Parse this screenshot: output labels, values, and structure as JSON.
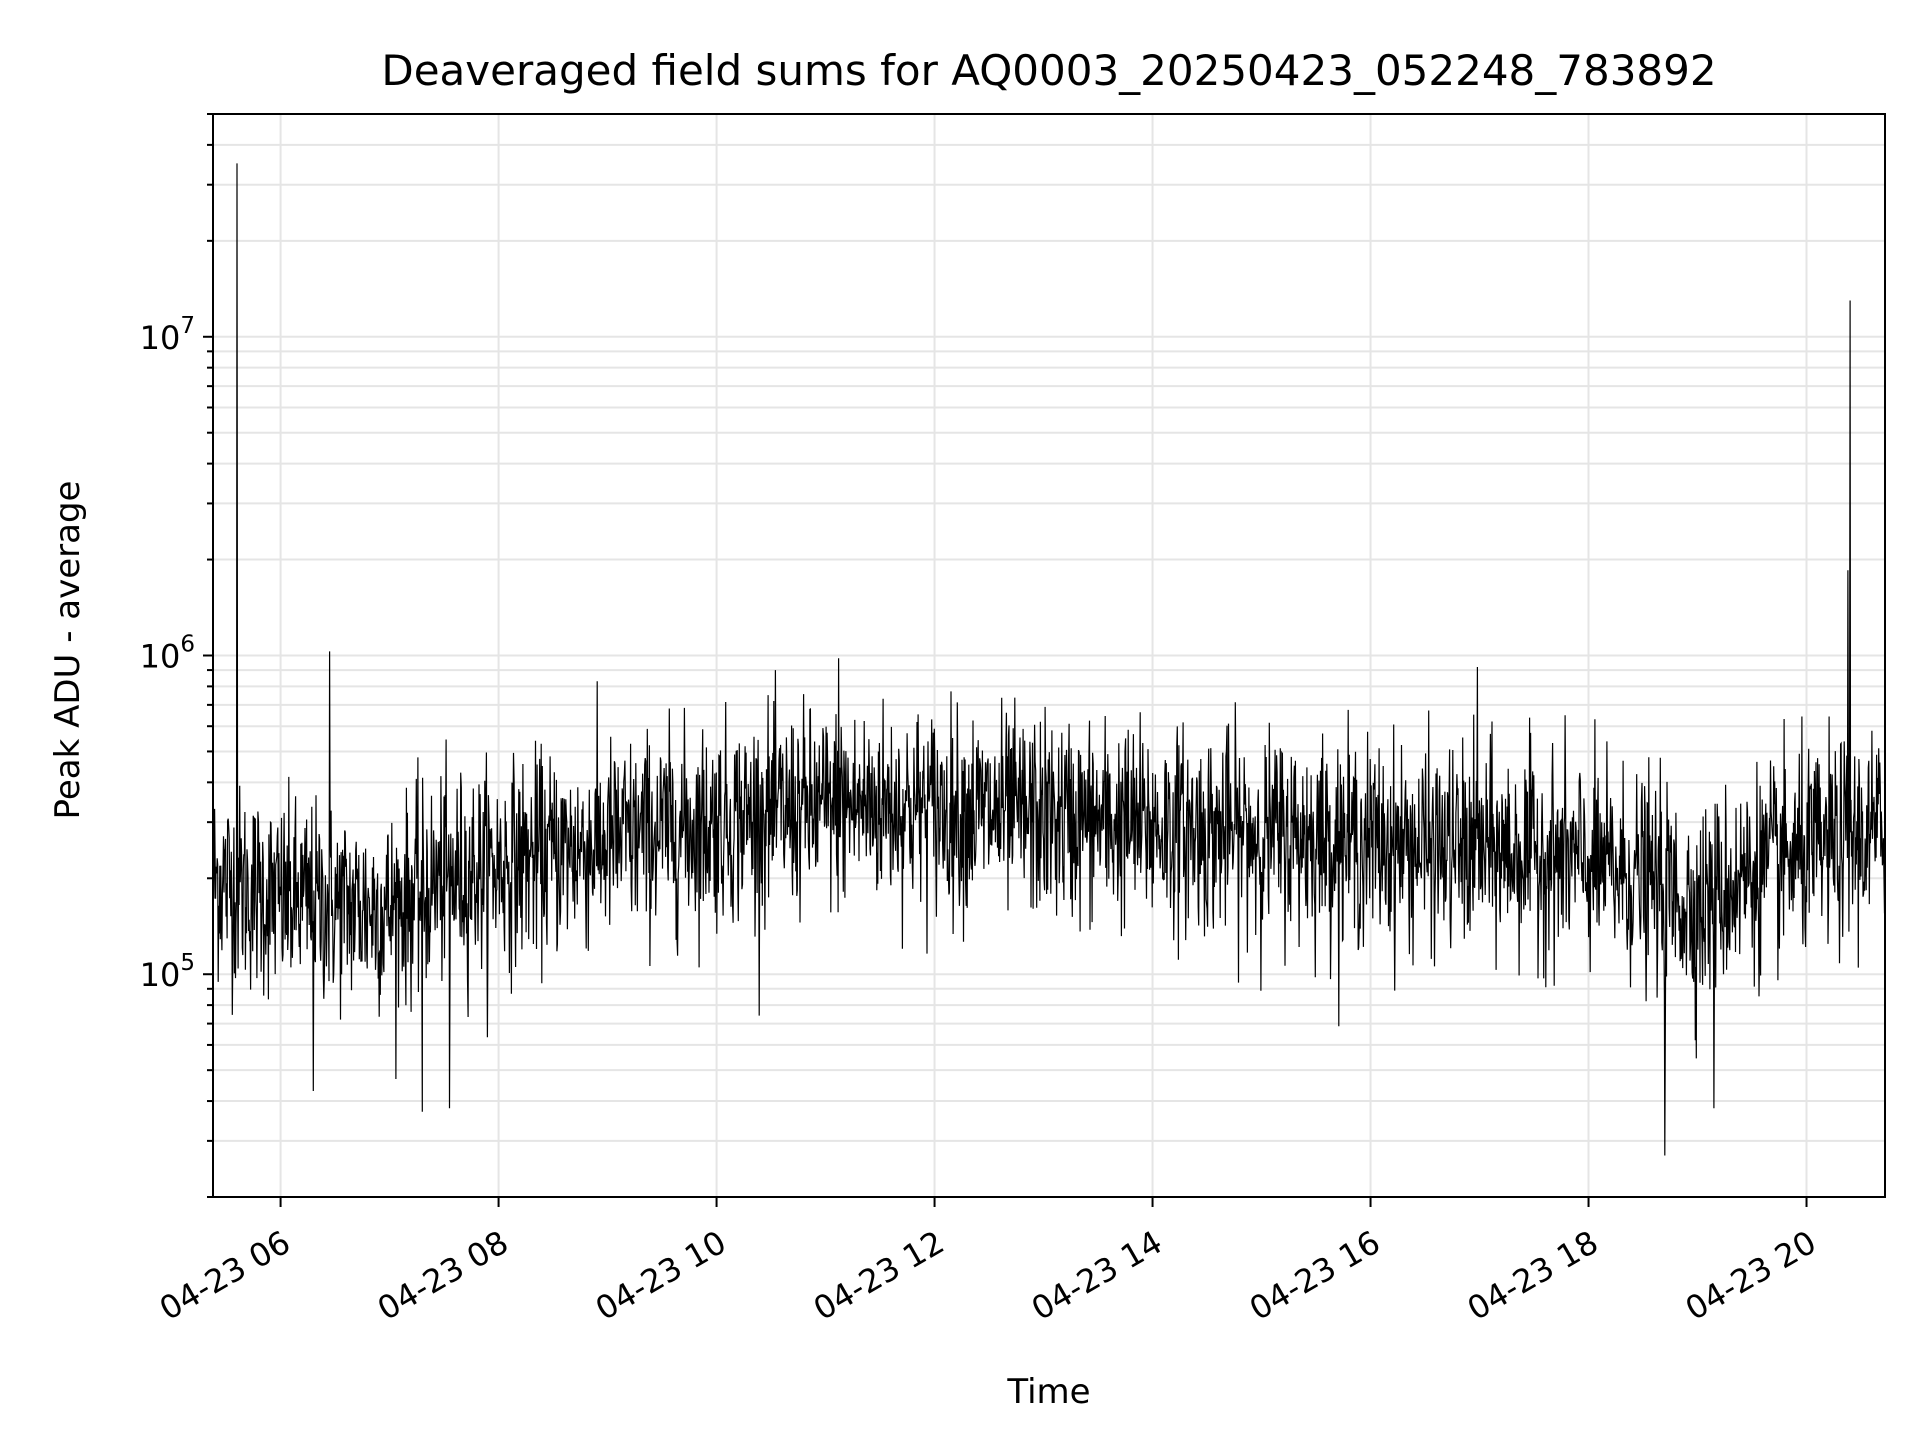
{
  "chart_data": {
    "type": "line",
    "title": "Deaveraged field sums for AQ0003_20250423_052248_783892",
    "xlabel": "Time",
    "ylabel": "Peak ADU - average",
    "x_tick_labels": [
      "04-23 06",
      "04-23 08",
      "04-23 10",
      "04-23 12",
      "04-23 14",
      "04-23 16",
      "04-23 18",
      "04-23 20"
    ],
    "x_ticks_hours": [
      6,
      8,
      10,
      12,
      14,
      16,
      18,
      20
    ],
    "xlim_hours": [
      5.38,
      20.72
    ],
    "y_scale": "log",
    "ylim": [
      20000,
      50000000
    ],
    "y_tick_labels": [
      {
        "value": 100000,
        "base": "10",
        "exp": "5"
      },
      {
        "value": 1000000,
        "base": "10",
        "exp": "6"
      },
      {
        "value": 10000000,
        "base": "10",
        "exp": "7"
      }
    ],
    "grid": true,
    "line_color": "#000000",
    "grid_color": "#e5e5e5",
    "series": [
      {
        "baseline_profile": [
          {
            "hour": 5.4,
            "value": 200000
          },
          {
            "hour": 6.0,
            "value": 170000
          },
          {
            "hour": 7.0,
            "value": 160000
          },
          {
            "hour": 7.5,
            "value": 200000
          },
          {
            "hour": 8.5,
            "value": 240000
          },
          {
            "hour": 9.5,
            "value": 280000
          },
          {
            "hour": 10.5,
            "value": 320000
          },
          {
            "hour": 11.5,
            "value": 340000
          },
          {
            "hour": 12.5,
            "value": 320000
          },
          {
            "hour": 13.5,
            "value": 300000
          },
          {
            "hour": 14.5,
            "value": 280000
          },
          {
            "hour": 15.5,
            "value": 270000
          },
          {
            "hour": 16.5,
            "value": 250000
          },
          {
            "hour": 17.5,
            "value": 240000
          },
          {
            "hour": 18.5,
            "value": 200000
          },
          {
            "hour": 19.0,
            "value": 160000
          },
          {
            "hour": 19.5,
            "value": 210000
          },
          {
            "hour": 20.2,
            "value": 250000
          },
          {
            "hour": 20.7,
            "value": 280000
          }
        ],
        "spikes": [
          {
            "hour": 5.6,
            "value": 35000000
          },
          {
            "hour": 6.45,
            "value": 1030000
          },
          {
            "hour": 11.12,
            "value": 980000
          },
          {
            "hour": 16.98,
            "value": 920000
          },
          {
            "hour": 20.4,
            "value": 13000000
          },
          {
            "hour": 20.38,
            "value": 1850000
          }
        ],
        "dips": [
          {
            "hour": 18.7,
            "value": 27000
          },
          {
            "hour": 7.3,
            "value": 37000
          },
          {
            "hour": 7.55,
            "value": 38000
          },
          {
            "hour": 6.3,
            "value": 43000
          },
          {
            "hour": 19.15,
            "value": 38000
          }
        ]
      }
    ]
  }
}
